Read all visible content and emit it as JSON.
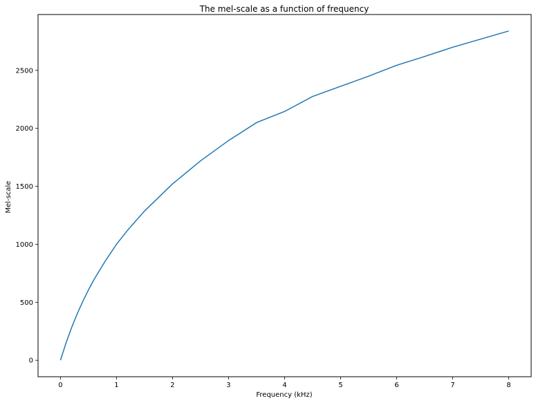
{
  "chart_data": {
    "type": "line",
    "title": "The mel-scale as a function of frequency",
    "xlabel": "Frequency (kHz)",
    "ylabel": "Mel-scale",
    "xlim": [
      -0.4,
      8.4
    ],
    "ylim": [
      -142,
      2982
    ],
    "xticks": [
      0,
      1,
      2,
      3,
      4,
      5,
      6,
      7,
      8
    ],
    "yticks": [
      0,
      500,
      1000,
      1500,
      2000,
      2500
    ],
    "grid": false,
    "legend": "none",
    "series": [
      {
        "color": "#1f77b4",
        "x": [
          0,
          0.1,
          0.2,
          0.3,
          0.4,
          0.5,
          0.6,
          0.8,
          1.0,
          1.2,
          1.5,
          2.0,
          2.5,
          3.0,
          3.5,
          4.0,
          4.5,
          5.0,
          5.5,
          6.0,
          6.5,
          7.0,
          7.5,
          8.0
        ],
        "y": [
          0,
          150,
          283,
          402,
          509,
          607,
          697,
          856,
          1000,
          1123,
          1287,
          1521,
          1720,
          1895,
          2050,
          2146,
          2275,
          2363,
          2450,
          2544,
          2620,
          2700,
          2770,
          2840
        ]
      }
    ]
  }
}
